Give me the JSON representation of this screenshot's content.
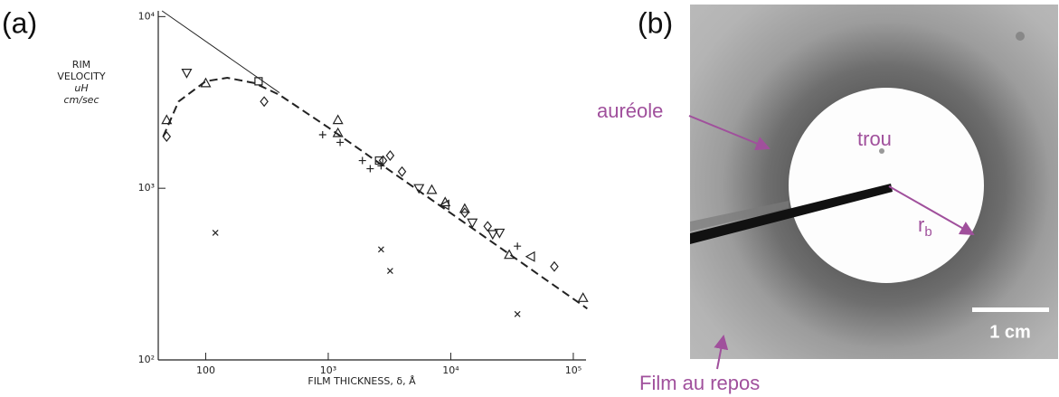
{
  "panel_labels": [
    "(a)",
    "(b)"
  ],
  "chart_data": {
    "type": "scatter",
    "x_label": "FILM THICKNESS, δ, Å",
    "y_label": [
      "RIM",
      "VELOCITY",
      "uH",
      "cm/sec"
    ],
    "log_x": true,
    "log_y": true,
    "xlim": [
      41,
      127000
    ],
    "ylim": [
      100,
      10800
    ],
    "xticks": [
      100,
      {
        "value": 1000,
        "label": "10³"
      },
      {
        "value": 10000,
        "label": "10⁴"
      },
      {
        "value": 100000,
        "label": "10⁵"
      }
    ],
    "yticks": [
      {
        "value": 100,
        "label": "10²"
      },
      {
        "value": 1000,
        "label": "10³"
      },
      {
        "value": 10000,
        "label": "10⁴"
      }
    ],
    "color": "#222",
    "series": [
      {
        "marker": "triangle",
        "x": [
          48,
          100,
          1200,
          1200,
          7000,
          9000,
          13000,
          30000,
          120000
        ],
        "values": [
          2500,
          4100,
          2500,
          2100,
          980,
          830,
          760,
          410,
          230
        ]
      },
      {
        "marker": "diamond",
        "x": [
          48,
          300,
          2800,
          3200,
          4000,
          13000,
          20000,
          70000
        ],
        "values": [
          2000,
          3200,
          1450,
          1550,
          1250,
          720,
          600,
          350
        ]
      },
      {
        "marker": "square",
        "x": [
          270,
          2600
        ],
        "values": [
          4200,
          1450
        ]
      },
      {
        "marker": "plus",
        "x": [
          900,
          1250,
          1900,
          2200,
          2700,
          35000
        ],
        "values": [
          2050,
          1850,
          1450,
          1300,
          1350,
          460
        ]
      },
      {
        "marker": "cross",
        "x": [
          120,
          2700,
          3200,
          35000
        ],
        "values": [
          550,
          440,
          330,
          185
        ]
      },
      {
        "marker": "down-triangle",
        "x": [
          70,
          5500,
          15000,
          22000,
          25000
        ],
        "values": [
          4700,
          1000,
          630,
          540,
          550
        ]
      },
      {
        "marker": "left-triangle",
        "x": [
          9000,
          45000
        ],
        "values": [
          800,
          400
        ]
      }
    ],
    "lines": [
      {
        "style": "solid",
        "x": [
          44,
          400
        ],
        "values": [
          10800,
          3600
        ]
      },
      {
        "style": "dashed",
        "x": [
          45,
          60,
          100,
          150,
          250,
          400,
          1000,
          10000,
          130000
        ],
        "values": [
          2000,
          3200,
          4200,
          4400,
          4100,
          3500,
          2260,
          716,
          199
        ]
      }
    ]
  },
  "photo": {
    "aureole": "auréole",
    "hole": "trou",
    "radius": {
      "main": "r",
      "subscript": "b"
    },
    "scale": "1 cm",
    "film": "Film au repos"
  }
}
